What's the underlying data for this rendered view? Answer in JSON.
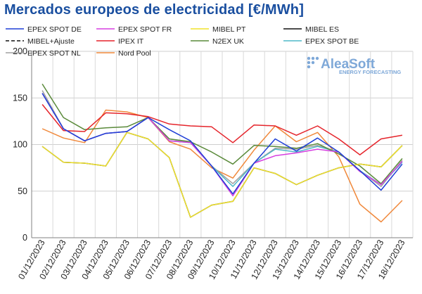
{
  "title": "Mercados europeos de electricidad [€/MWh]",
  "watermark": {
    "brand": "AleaSoft",
    "tagline": "ENERGY FORECASTING",
    "color": "#7ea8d8"
  },
  "chart_data": {
    "type": "line",
    "title": "Mercados europeos de electricidad [€/MWh]",
    "ylabel": "",
    "xlabel": "",
    "ylim": [
      0,
      200
    ],
    "yticks": [
      0,
      50,
      100,
      150,
      200
    ],
    "grid": true,
    "legend_position": "top",
    "x": [
      "01/12/2023",
      "02/12/2023",
      "03/12/2023",
      "04/12/2023",
      "05/12/2023",
      "06/12/2023",
      "07/12/2023",
      "08/12/2023",
      "09/12/2023",
      "10/12/2023",
      "11/12/2023",
      "12/12/2023",
      "13/12/2023",
      "14/12/2023",
      "15/12/2023",
      "16/12/2023",
      "17/12/2023",
      "18/12/2023"
    ],
    "series": [
      {
        "name": "EPEX SPOT DE",
        "color": "#1f3fd6",
        "dash": "",
        "values": [
          155,
          117,
          104,
          112,
          114,
          129,
          116,
          104,
          77,
          47,
          80,
          106,
          93,
          107,
          92,
          72,
          51,
          79
        ]
      },
      {
        "name": "EPEX SPOT FR",
        "color": "#d63fe0",
        "dash": "",
        "values": [
          155,
          117,
          104,
          112,
          114,
          129,
          104,
          102,
          77,
          45,
          80,
          88,
          91,
          95,
          92,
          71,
          57,
          82
        ]
      },
      {
        "name": "MIBEL PT",
        "color": "#f0e22a",
        "dash": "",
        "values": [
          98,
          81,
          80,
          77,
          113,
          106,
          86,
          22,
          35,
          39,
          75,
          69,
          57,
          67,
          75,
          79,
          76,
          99
        ]
      },
      {
        "name": "MIBEL ES",
        "color": "#111111",
        "dash": "",
        "values": [
          98,
          81,
          80,
          77,
          113,
          106,
          86,
          22,
          35,
          39,
          75,
          69,
          57,
          67,
          75,
          79,
          76,
          99
        ]
      },
      {
        "name": "MIBEL+Ajuste",
        "color": "#111111",
        "dash": "5,3",
        "values": [
          98,
          81,
          80,
          77,
          113,
          106,
          86,
          22,
          35,
          39,
          75,
          69,
          57,
          67,
          75,
          79,
          76,
          99
        ]
      },
      {
        "name": "IPEX IT",
        "color": "#e5242b",
        "dash": "",
        "values": [
          143,
          115,
          114,
          134,
          133,
          130,
          122,
          120,
          119,
          102,
          121,
          120,
          110,
          120,
          106,
          89,
          106,
          110
        ]
      },
      {
        "name": "N2EX UK",
        "color": "#5a8a3a",
        "dash": "",
        "values": [
          165,
          129,
          116,
          118,
          119,
          129,
          106,
          103,
          92,
          79,
          99,
          98,
          96,
          101,
          90,
          77,
          58,
          85
        ]
      },
      {
        "name": "EPEX SPOT BE",
        "color": "#4fb8c8",
        "dash": "",
        "values": [
          155,
          117,
          104,
          112,
          114,
          129,
          104,
          102,
          77,
          55,
          80,
          95,
          92,
          98,
          92,
          72,
          57,
          81
        ]
      },
      {
        "name": "EPEX SPOT NL",
        "color": "#a0a0a0",
        "dash": "",
        "values": [
          158,
          117,
          104,
          112,
          114,
          129,
          106,
          102,
          77,
          58,
          80,
          96,
          95,
          99,
          92,
          72,
          55,
          83
        ]
      },
      {
        "name": "Nord Pool",
        "color": "#f0883a",
        "dash": "",
        "values": [
          117,
          107,
          102,
          137,
          135,
          129,
          103,
          95,
          75,
          64,
          94,
          120,
          103,
          113,
          87,
          36,
          17,
          40
        ]
      }
    ]
  }
}
